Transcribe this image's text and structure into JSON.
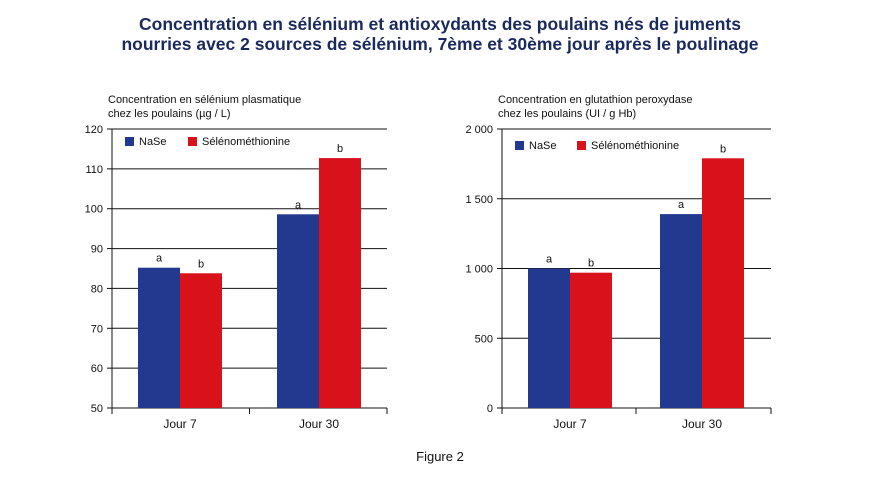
{
  "title": {
    "line1": "Concentration en sélénium et antioxydants des poulains nés de juments",
    "line2": "nourries avec 2 sources de sélénium, 7ème et 30ème jour après le poulinage"
  },
  "caption": "Figure 2",
  "chart_data": [
    {
      "type": "bar",
      "ylabel_lines": [
        "Concentration en sélénium plasmatique",
        "chez les poulains (µg / L)"
      ],
      "categories": [
        "Jour 7",
        "Jour 30"
      ],
      "ylim": [
        50,
        120
      ],
      "yticks": [
        50,
        60,
        70,
        80,
        90,
        100,
        110,
        120
      ],
      "ytick_labels": [
        "50",
        "60",
        "70",
        "80",
        "90",
        "100",
        "110",
        "120"
      ],
      "grid": true,
      "legend_position": "top-left",
      "series": [
        {
          "name": "NaSe",
          "color": "#22398f",
          "values": [
            85.2,
            98.6
          ],
          "labels": [
            "a",
            "a"
          ]
        },
        {
          "name": "Sélénométhionine",
          "color": "#d9111b",
          "values": [
            83.8,
            112.7
          ],
          "labels": [
            "b",
            "b"
          ]
        }
      ]
    },
    {
      "type": "bar",
      "ylabel_lines": [
        "Concentration en glutathion peroxydase",
        "chez les poulains (UI / g Hb)"
      ],
      "categories": [
        "Jour 7",
        "Jour 30"
      ],
      "ylim": [
        0,
        2000
      ],
      "yticks": [
        0,
        500,
        1000,
        1500,
        2000
      ],
      "ytick_labels": [
        "0",
        "500",
        "1 000",
        "1 500",
        "2 000"
      ],
      "grid": true,
      "legend_position": "top-left",
      "series": [
        {
          "name": "NaSe",
          "color": "#22398f",
          "values": [
            1000,
            1390
          ],
          "labels": [
            "a",
            "a"
          ]
        },
        {
          "name": "Sélénométhionine",
          "color": "#d9111b",
          "values": [
            970,
            1790
          ],
          "labels": [
            "b",
            "b"
          ]
        }
      ]
    }
  ]
}
